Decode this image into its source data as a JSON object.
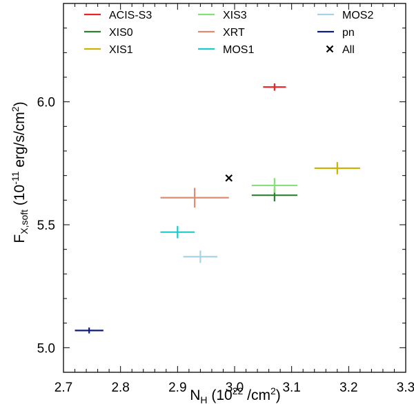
{
  "chart_data": {
    "type": "scatter",
    "title": "",
    "xlabel": {
      "main": "N",
      "sub": "H",
      "rest_open": " (10",
      "sup": "22",
      "rest_close": " /cm",
      "sup2": "2",
      "tail": ")"
    },
    "ylabel": {
      "main": "F",
      "sub": "X,soft",
      "rest_open": " (10",
      "sup": "-11",
      "rest_mid": " erg/s/cm",
      "sup2": "2",
      "tail": ")"
    },
    "xlim": [
      2.7,
      3.3
    ],
    "ylim": [
      4.9,
      6.4
    ],
    "xticks": [
      2.7,
      2.8,
      2.9,
      3.0,
      3.1,
      3.2,
      3.3
    ],
    "xtick_labels": [
      "2.7",
      "2.8",
      "2.9",
      "3.0",
      "3.1",
      "3.2",
      "3.3"
    ],
    "yticks": [
      5.0,
      5.5,
      6.0
    ],
    "ytick_labels": [
      "5.0",
      "5.5",
      "6.0"
    ],
    "grid": false,
    "legend_position": "top",
    "series": [
      {
        "name": "ACIS-S3",
        "color": "#e8262a",
        "marker": "errorbar",
        "x": 3.07,
        "xerr": 0.02,
        "y": 6.06,
        "yerr": 0.015
      },
      {
        "name": "XIS0",
        "color": "#2e7d32",
        "marker": "errorbar",
        "x": 3.07,
        "xerr": 0.04,
        "y": 5.62,
        "yerr": 0.025
      },
      {
        "name": "XIS1",
        "color": "#c8b400",
        "marker": "errorbar",
        "x": 3.18,
        "xerr": 0.04,
        "y": 5.73,
        "yerr": 0.025
      },
      {
        "name": "XIS3",
        "color": "#86e07a",
        "marker": "errorbar",
        "x": 3.07,
        "xerr": 0.04,
        "y": 5.66,
        "yerr": 0.03
      },
      {
        "name": "XRT",
        "color": "#e08a70",
        "marker": "errorbar",
        "x": 2.93,
        "xerr": 0.06,
        "y": 5.61,
        "yerr": 0.04
      },
      {
        "name": "MOS1",
        "color": "#1cc8c8",
        "marker": "errorbar",
        "x": 2.9,
        "xerr": 0.03,
        "y": 5.47,
        "yerr": 0.025
      },
      {
        "name": "MOS2",
        "color": "#a6d2ea",
        "marker": "errorbar",
        "x": 2.94,
        "xerr": 0.03,
        "y": 5.37,
        "yerr": 0.025
      },
      {
        "name": "pn",
        "color": "#0d1b7a",
        "marker": "errorbar",
        "x": 2.745,
        "xerr": 0.025,
        "y": 5.07,
        "yerr": 0.012
      },
      {
        "name": "All",
        "color": "#000000",
        "marker": "cross",
        "x": 2.99,
        "y": 5.69
      }
    ]
  }
}
